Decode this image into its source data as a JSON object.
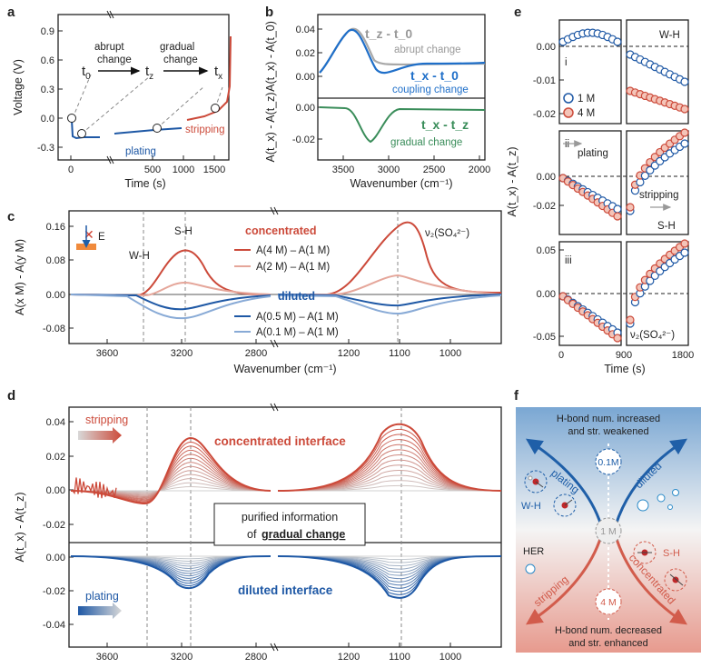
{
  "colors": {
    "red": "#cc4a3a",
    "pink": "#e5a69a",
    "blue": "#1e58a5",
    "lightblue": "#88aad6",
    "gray": "#a8a8a8",
    "green": "#3a8d5a",
    "sky": "#1f6fc9",
    "redfill": "#e05a48"
  },
  "panels": {
    "a": "a",
    "b": "b",
    "c": "c",
    "d": "d",
    "e": "e",
    "f": "f"
  },
  "a": {
    "ylabel": "Voltage (V)",
    "xlabel": "Time (s)",
    "yticks": [
      "0.9",
      "0.6",
      "0.3",
      "0.0",
      "-0.3"
    ],
    "xticks": [
      "0",
      "500",
      "1000",
      "1500"
    ],
    "t0": "t",
    "t0sub": "0",
    "tz": "t",
    "tzsub": "z",
    "tx": "t",
    "txsub": "x",
    "abrupt1": "abrupt",
    "abrupt2": "change",
    "gradual1": "gradual",
    "gradual2": "change",
    "plating": "plating",
    "stripping": "stripping"
  },
  "b": {
    "ylabel_top": "A(t_x) - A(t_0)",
    "ylabel_bot": "A(t_x) - A(t_z)",
    "xlabel": "Wavenumber (cm⁻¹)",
    "yticks_top": [
      "0.04",
      "0.02",
      "0.00"
    ],
    "yticks_bot": [
      "0.00",
      "-0.02"
    ],
    "xticks": [
      "3500",
      "3000",
      "2500",
      "2000"
    ],
    "leg_gray": "t_z - t_0",
    "leg_gray_note": "abrupt change",
    "leg_blue": "t_x - t_0",
    "leg_blue_note": "coupling change",
    "leg_green": "t_x - t_z",
    "leg_green_note": "gradual change"
  },
  "c": {
    "ylabel": "A(x M) - A(y M)",
    "xlabel": "Wavenumber (cm⁻¹)",
    "yticks": [
      "0.16",
      "0.08",
      "0.00",
      "-0.08"
    ],
    "xticks": [
      "3600",
      "3200",
      "2800",
      "1200",
      "1100",
      "1000"
    ],
    "wh": "W-H",
    "sh": "S-H",
    "nu": "ν₂(SO₄²⁻)",
    "e_label": "E",
    "concentrated": "concentrated",
    "diluted": "diluted",
    "leg": [
      "A(4 M) – A(1 M)",
      "A(2 M) – A(1 M)",
      "A(0.5 M) – A(1 M)",
      "A(0.1 M) – A(1 M)"
    ]
  },
  "d": {
    "ylabel": "A(t_x) - A(t_z)",
    "xlabel": "Wavenumber (cm⁻¹)",
    "yticks_top": [
      "0.04",
      "0.02",
      "0.00",
      "-0.02"
    ],
    "yticks_bot": [
      "0.00",
      "-0.02",
      "-0.04"
    ],
    "xticks": [
      "3600",
      "3200",
      "2800",
      "1200",
      "1100",
      "1000"
    ],
    "stripping": "stripping",
    "plating": "plating",
    "conc": "concentrated interface",
    "dil": "diluted interface",
    "box1": "purified information",
    "box2": "of",
    "box3": "gradual change"
  },
  "e": {
    "ylabel": "A(t_x) - A(t_z)",
    "xlabel": "Time (s)",
    "xticks": [
      "0",
      "900",
      "1800"
    ],
    "row1_ticks": [
      "0.00",
      "-0.01",
      "-0.02"
    ],
    "row2_ticks": [
      "0.00",
      "-0.02"
    ],
    "row3_ticks": [
      "0.05",
      "0.00",
      "-0.05"
    ],
    "i": "i",
    "ii": "ii",
    "iii": "iii",
    "wh": "W-H",
    "sh": "S-H",
    "nu": "ν₂(SO₄²⁻)",
    "plating": "plating",
    "stripping": "stripping",
    "m1": "1 M",
    "m4": "4 M"
  },
  "f": {
    "top1": "H-bond num. increased",
    "top2": "and str. weakened",
    "bot1": "H-bond num. decreased",
    "bot2": "and str. enhanced",
    "plating": "plating",
    "diluted": "diluted",
    "stripping": "stripping",
    "concentrated": "concentrated",
    "c01": "0.1M",
    "c1": "1 M",
    "c4": "4 M",
    "wh": "W-H",
    "sh": "S-H",
    "her": "HER"
  },
  "chart_data": [
    {
      "type": "line",
      "title": "a",
      "xlabel": "Time (s)",
      "ylabel": "Voltage (V)",
      "ylim": [
        -0.35,
        0.95
      ],
      "series": [
        {
          "name": "plating",
          "values": [
            [
              0,
              -0.17
            ],
            [
              60,
              -0.17
            ],
            [
              500,
              -0.13
            ],
            [
              1000,
              -0.1
            ]
          ]
        },
        {
          "name": "stripping",
          "values": [
            [
              1000,
              0.02
            ],
            [
              1500,
              0.1
            ],
            [
              1700,
              0.2
            ],
            [
              1760,
              0.85
            ]
          ]
        }
      ]
    },
    {
      "type": "line",
      "title": "b",
      "xlabel": "Wavenumber (cm⁻¹)",
      "ylim": [
        -0.03,
        0.04
      ],
      "series": [
        {
          "name": "tz - t0"
        },
        {
          "name": "tx - t0"
        },
        {
          "name": "tx - tz"
        }
      ]
    },
    {
      "type": "line",
      "title": "c",
      "xlabel": "Wavenumber (cm⁻¹)",
      "ylabel": "A(x M) - A(y M)",
      "ylim": [
        -0.1,
        0.18
      ],
      "series": [
        {
          "name": "A(4 M) – A(1 M)",
          "peak_SH": 0.105,
          "peak_SO4": 0.17
        },
        {
          "name": "A(2 M) – A(1 M)",
          "peak_SH": 0.03,
          "peak_SO4": 0.055
        },
        {
          "name": "A(0.5 M) – A(1 M)",
          "peak_SH": -0.04,
          "peak_SO4": -0.03
        },
        {
          "name": "A(0.1 M) – A(1 M)",
          "peak_SH": -0.065,
          "peak_SO4": -0.05
        }
      ]
    },
    {
      "type": "line",
      "title": "d",
      "xlabel": "Wavenumber (cm⁻¹)",
      "ylabel": "A(tx) - A(tz)"
    },
    {
      "type": "scatter",
      "title": "e",
      "xlabel": "Time (s)",
      "xlim": [
        0,
        1800
      ],
      "series": [
        {
          "name": "1 M"
        },
        {
          "name": "4 M"
        }
      ]
    }
  ]
}
